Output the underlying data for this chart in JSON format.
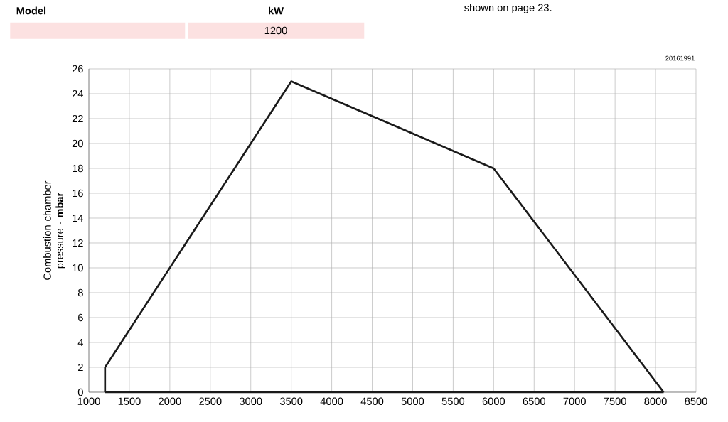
{
  "chart_data": {
    "type": "line",
    "ylabel": "Combustion chamber pressure - **mbar**",
    "series": [
      {
        "color": "#1a1a1a",
        "x": [
          1200,
          1200,
          3500,
          6000,
          8100
        ],
        "values": [
          0,
          2,
          25,
          18,
          0
        ]
      },
      {
        "color": "#1a1a1a",
        "x": [
          1200,
          8100
        ],
        "values": [
          0,
          0
        ]
      }
    ],
    "xlim": [
      1000,
      8500
    ],
    "xticks": [
      1000,
      1500,
      2000,
      2500,
      3000,
      3500,
      4000,
      4500,
      5000,
      5500,
      6000,
      6500,
      7000,
      7500,
      8000,
      8500
    ],
    "ylim": [
      0,
      26
    ],
    "yticks": [
      0,
      2,
      4,
      6,
      8,
      10,
      12,
      14,
      16,
      18,
      20,
      22,
      24,
      26
    ],
    "grid": true,
    "annotations": [
      "Model",
      "kW",
      "1200",
      "shown on page 23.",
      "20161991"
    ]
  }
}
